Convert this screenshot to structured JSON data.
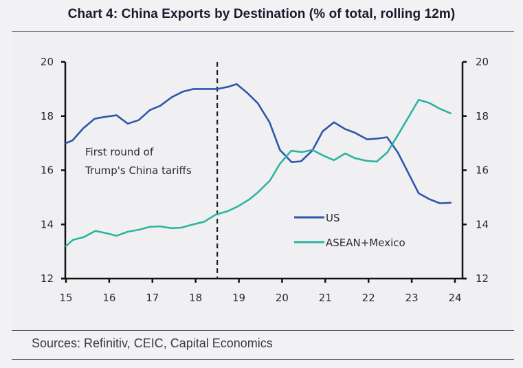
{
  "header": {
    "title": "Chart 4: China Exports by Destination (% of total, rolling 12m)"
  },
  "footer": {
    "source": "Sources: Refinitiv, CEIC, Capital Economics"
  },
  "colors": {
    "us": "#2f56ab",
    "asean_mexico": "#2db4a0",
    "axis": "#111111",
    "dashed_marker": "#222222"
  },
  "chart_data": {
    "type": "line",
    "title": "Chart 4: China Exports by Destination (% of total, rolling 12m)",
    "xlabel": "",
    "ylabel": "",
    "xlim": [
      15,
      24.2
    ],
    "ylim": [
      12,
      20
    ],
    "y2lim": [
      12,
      20
    ],
    "x_ticks": [
      15,
      16,
      17,
      18,
      19,
      20,
      21,
      22,
      23,
      24
    ],
    "x_tick_labels": [
      "15",
      "16",
      "17",
      "18",
      "19",
      "20",
      "21",
      "22",
      "23",
      "24"
    ],
    "y_ticks": [
      12,
      14,
      16,
      18,
      20
    ],
    "y_tick_labels": [
      "12",
      "14",
      "16",
      "18",
      "20"
    ],
    "y2_ticks": [
      12,
      14,
      16,
      18,
      20
    ],
    "y2_tick_labels": [
      "12",
      "14",
      "16",
      "18",
      "20"
    ],
    "grid": false,
    "legend_position": "center-right",
    "series": [
      {
        "name": "US",
        "color": "#2f56ab",
        "x": [
          15.0,
          15.15,
          15.4,
          15.66,
          15.9,
          16.17,
          16.43,
          16.68,
          16.94,
          17.18,
          17.45,
          17.7,
          17.95,
          18.2,
          18.5,
          18.75,
          18.95,
          19.2,
          19.44,
          19.71,
          19.95,
          20.22,
          20.44,
          20.7,
          20.94,
          21.2,
          21.46,
          21.68,
          21.97,
          22.2,
          22.43,
          22.68,
          22.92,
          23.16,
          23.41,
          23.65,
          23.9
        ],
        "values": [
          17.0,
          17.1,
          17.55,
          17.9,
          17.97,
          18.03,
          17.72,
          17.85,
          18.22,
          18.38,
          18.7,
          18.9,
          19.0,
          19.0,
          19.0,
          19.08,
          19.18,
          18.85,
          18.47,
          17.77,
          16.75,
          16.3,
          16.33,
          16.73,
          17.44,
          17.77,
          17.52,
          17.39,
          17.14,
          17.17,
          17.22,
          16.65,
          15.9,
          15.15,
          14.93,
          14.78,
          14.8
        ]
      },
      {
        "name": "ASEAN+Mexico",
        "color": "#2db4a0",
        "x": [
          15.0,
          15.16,
          15.41,
          15.68,
          15.92,
          16.17,
          16.43,
          16.68,
          16.94,
          17.17,
          17.44,
          17.67,
          17.94,
          18.2,
          18.46,
          18.73,
          18.97,
          19.24,
          19.43,
          19.72,
          19.95,
          20.21,
          20.46,
          20.7,
          20.94,
          21.2,
          21.46,
          21.68,
          21.94,
          22.19,
          22.43,
          22.68,
          22.92,
          23.16,
          23.41,
          23.65,
          23.9
        ],
        "values": [
          13.2,
          13.43,
          13.53,
          13.76,
          13.68,
          13.58,
          13.73,
          13.8,
          13.91,
          13.93,
          13.86,
          13.88,
          14.0,
          14.1,
          14.36,
          14.48,
          14.66,
          14.92,
          15.17,
          15.62,
          16.24,
          16.72,
          16.67,
          16.75,
          16.55,
          16.37,
          16.62,
          16.45,
          16.35,
          16.32,
          16.65,
          17.3,
          17.95,
          18.6,
          18.48,
          18.27,
          18.1
        ]
      }
    ],
    "annotations": [
      {
        "type": "vertical-dashed-line",
        "x": 18.5,
        "label_lines": [
          "First round of",
          "Trump's China tariffs"
        ]
      }
    ]
  }
}
